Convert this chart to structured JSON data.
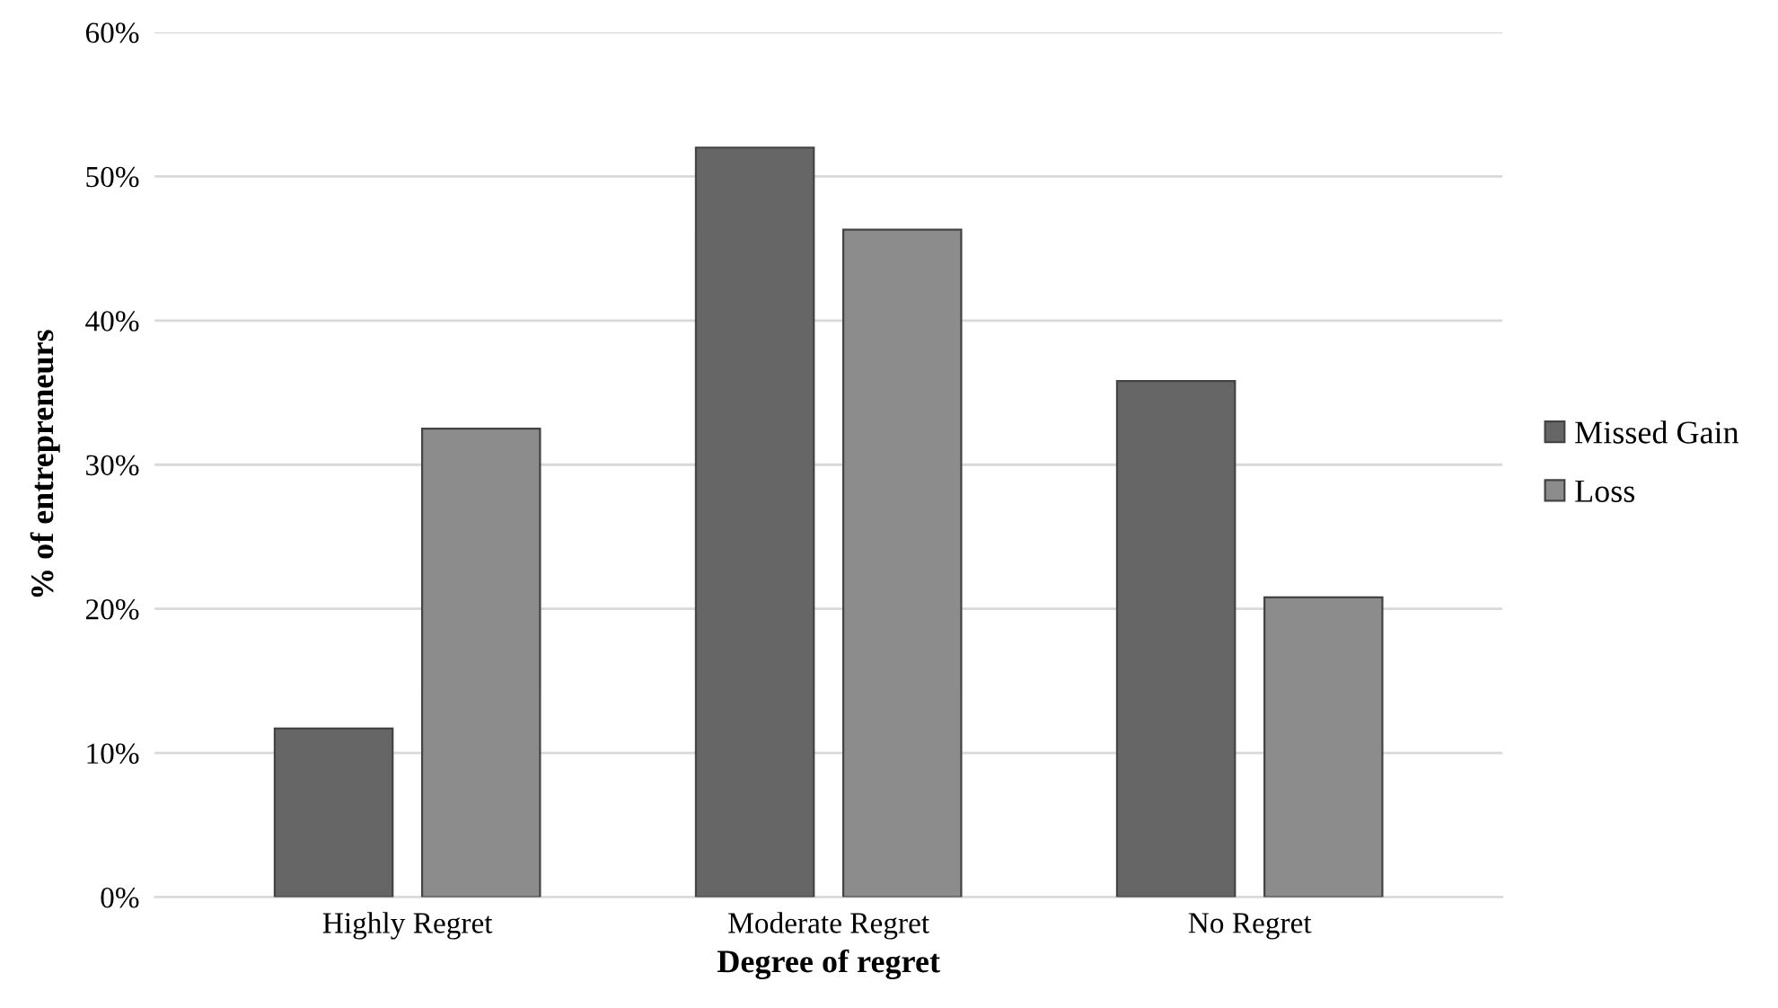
{
  "chart_data": {
    "type": "bar",
    "xlabel": "Degree of regret",
    "ylabel": "% of entrepreneurs",
    "categories": [
      "Highly Regret",
      "Moderate Regret",
      "No Regret"
    ],
    "series": [
      {
        "name": "Missed Gain",
        "color": "#666666",
        "values": [
          11.7,
          52.0,
          35.8
        ]
      },
      {
        "name": "Loss",
        "color": "#8c8c8c",
        "values": [
          32.5,
          46.3,
          20.8
        ]
      }
    ],
    "ylim": [
      0,
      60
    ],
    "yticks": [
      {
        "value": 0,
        "label": "0%"
      },
      {
        "value": 10,
        "label": "10%"
      },
      {
        "value": 20,
        "label": "20%"
      },
      {
        "value": 30,
        "label": "30%"
      },
      {
        "value": 40,
        "label": "40%"
      },
      {
        "value": 50,
        "label": "50%"
      },
      {
        "value": 60,
        "label": "60%"
      }
    ],
    "grid": "y",
    "legend": "right"
  }
}
